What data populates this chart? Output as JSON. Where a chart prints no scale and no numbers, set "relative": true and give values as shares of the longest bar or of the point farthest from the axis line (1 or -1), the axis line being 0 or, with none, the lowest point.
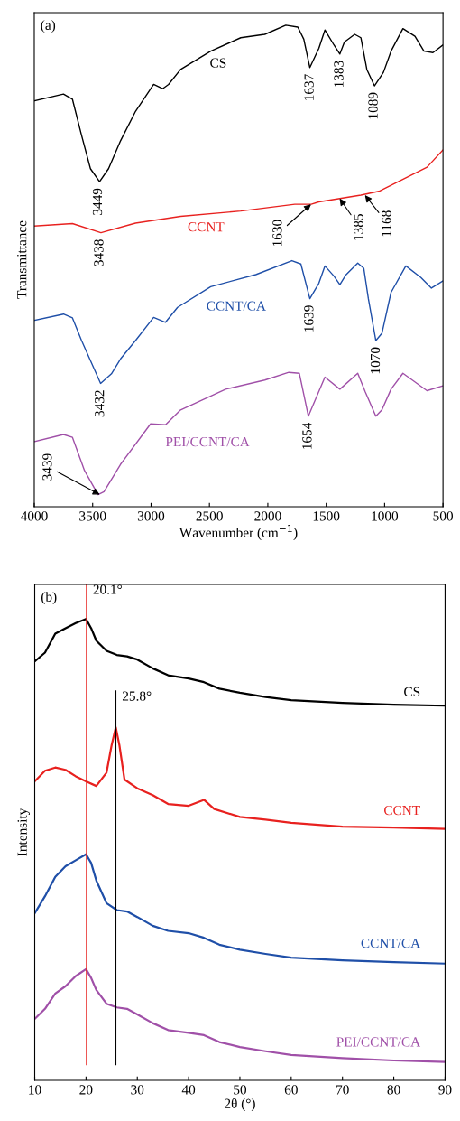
{
  "chart_data": [
    {
      "type": "line",
      "title": "(a)",
      "xlabel": "Wavenumber (cm$^{−1}$)",
      "ylabel": "Transmittance",
      "relative": true,
      "xlim": [
        4000,
        500
      ],
      "xticks": [
        4000,
        3500,
        3000,
        2500,
        2000,
        1500,
        1000,
        500
      ],
      "series": [
        {
          "name": "CS",
          "color": "#000000",
          "x": [
            4000,
            3750,
            3673,
            3595,
            3519,
            3441,
            3364,
            3261,
            3133,
            2978,
            2901,
            2850,
            2747,
            2489,
            2232,
            2026,
            1846,
            1743,
            1692,
            1640,
            1563,
            1511,
            1434,
            1383,
            1344,
            1256,
            1203,
            1152,
            1087,
            1010,
            945,
            843,
            740,
            663,
            586,
            500
          ],
          "values": [
            0.843,
            0.857,
            0.846,
            0.771,
            0.702,
            0.675,
            0.702,
            0.76,
            0.821,
            0.877,
            0.868,
            0.877,
            0.908,
            0.946,
            0.974,
            0.981,
            1.0,
            0.996,
            0.971,
            0.912,
            0.952,
            0.99,
            0.959,
            0.94,
            0.965,
            0.981,
            0.974,
            0.908,
            0.874,
            0.902,
            0.946,
            0.993,
            0.977,
            0.946,
            0.943,
            0.959
          ]
        },
        {
          "name": "CCNT",
          "color": "#e8211f",
          "x": [
            4000,
            3673,
            3429,
            3133,
            2747,
            2232,
            1769,
            1628,
            1563,
            1203,
            1049,
            818,
            637,
            500
          ],
          "values": [
            0.583,
            0.588,
            0.569,
            0.589,
            0.603,
            0.614,
            0.628,
            0.628,
            0.633,
            0.647,
            0.655,
            0.683,
            0.705,
            0.741
          ]
        },
        {
          "name": "CCNT/CA",
          "color": "#1f4fa8",
          "x": [
            4000,
            3750,
            3673,
            3595,
            3432,
            3339,
            3261,
            3133,
            2978,
            2876,
            2773,
            2489,
            2103,
            1794,
            1717,
            1640,
            1563,
            1511,
            1434,
            1383,
            1333,
            1230,
            1178,
            1139,
            1075,
            1023,
            945,
            818,
            689,
            599,
            500
          ],
          "values": [
            0.387,
            0.4,
            0.392,
            0.345,
            0.256,
            0.276,
            0.307,
            0.345,
            0.393,
            0.383,
            0.414,
            0.457,
            0.482,
            0.511,
            0.504,
            0.432,
            0.464,
            0.5,
            0.479,
            0.461,
            0.481,
            0.506,
            0.495,
            0.432,
            0.345,
            0.36,
            0.445,
            0.5,
            0.476,
            0.454,
            0.469
          ]
        },
        {
          "name": "PEI/CCNT/CA",
          "color": "#a050a8",
          "x": [
            4000,
            3750,
            3673,
            3570,
            3454,
            3403,
            3261,
            3004,
            2876,
            2747,
            2361,
            2026,
            1820,
            1730,
            1653,
            1511,
            1383,
            1230,
            1165,
            1075,
            1023,
            945,
            843,
            637,
            500
          ],
          "values": [
            0.135,
            0.15,
            0.144,
            0.075,
            0.025,
            0.031,
            0.088,
            0.172,
            0.17,
            0.201,
            0.244,
            0.263,
            0.279,
            0.277,
            0.188,
            0.269,
            0.244,
            0.277,
            0.238,
            0.188,
            0.201,
            0.244,
            0.277,
            0.241,
            0.251
          ]
        }
      ],
      "annotations": [
        {
          "text": "3449",
          "x": 3449,
          "y": 0.675
        },
        {
          "text": "1637",
          "x": 1637,
          "y": 0.912
        },
        {
          "text": "1383",
          "x": 1383,
          "y": 0.94
        },
        {
          "text": "1089",
          "x": 1089,
          "y": 0.874
        },
        {
          "text": "3438",
          "x": 3438,
          "y": 0.569
        },
        {
          "text": "1630",
          "x": 1630,
          "y": 0.628
        },
        {
          "text": "1385",
          "x": 1385,
          "y": 0.64
        },
        {
          "text": "1168",
          "x": 1168,
          "y": 0.647
        },
        {
          "text": "3432",
          "x": 3432,
          "y": 0.256
        },
        {
          "text": "1639",
          "x": 1639,
          "y": 0.432
        },
        {
          "text": "1070",
          "x": 1070,
          "y": 0.345
        },
        {
          "text": "1654",
          "x": 1654,
          "y": 0.188
        },
        {
          "text": "3439",
          "x": 3439,
          "y": 0.025
        }
      ]
    },
    {
      "type": "line",
      "title": "(b)",
      "xlabel": "2θ (°)",
      "ylabel": "Intensity",
      "relative": true,
      "xlim": [
        10,
        90
      ],
      "xticks": [
        10,
        20,
        30,
        40,
        50,
        60,
        70,
        80,
        90
      ],
      "series": [
        {
          "name": "CS",
          "color": "#000000",
          "x": [
            10,
            12,
            14,
            16,
            18,
            20,
            21,
            22,
            24,
            26,
            28,
            30,
            33,
            36,
            40,
            43,
            46,
            50,
            55,
            60,
            70,
            80,
            90
          ],
          "values": [
            0.908,
            0.927,
            0.968,
            0.98,
            0.991,
            1.0,
            0.98,
            0.953,
            0.931,
            0.922,
            0.919,
            0.912,
            0.893,
            0.878,
            0.871,
            0.863,
            0.849,
            0.84,
            0.831,
            0.824,
            0.818,
            0.814,
            0.812
          ]
        },
        {
          "name": "CCNT",
          "color": "#e8211f",
          "x": [
            10,
            12,
            14,
            16,
            18,
            20,
            22,
            24,
            25,
            25.8,
            26.5,
            27.5,
            30,
            33,
            36,
            40,
            43,
            45,
            50,
            55,
            60,
            70,
            80,
            90
          ],
          "values": [
            0.648,
            0.671,
            0.678,
            0.673,
            0.659,
            0.648,
            0.638,
            0.667,
            0.727,
            0.765,
            0.727,
            0.652,
            0.633,
            0.618,
            0.599,
            0.595,
            0.608,
            0.588,
            0.571,
            0.565,
            0.558,
            0.55,
            0.548,
            0.545
          ]
        },
        {
          "name": "CCNT/CA",
          "color": "#1f4fa8",
          "x": [
            10,
            12,
            14,
            16,
            18,
            20,
            21,
            22,
            24,
            26,
            28,
            30,
            33,
            36,
            40,
            43,
            46,
            50,
            55,
            60,
            70,
            80,
            90
          ],
          "values": [
            0.362,
            0.399,
            0.441,
            0.464,
            0.477,
            0.49,
            0.471,
            0.433,
            0.384,
            0.369,
            0.366,
            0.354,
            0.335,
            0.324,
            0.319,
            0.309,
            0.294,
            0.283,
            0.274,
            0.266,
            0.26,
            0.256,
            0.253
          ]
        },
        {
          "name": "PEI/CCNT/CA",
          "color": "#a050a8",
          "x": [
            10,
            12,
            14,
            16,
            18,
            20,
            21,
            22,
            24,
            26,
            28,
            30,
            33,
            36,
            40,
            43,
            46,
            50,
            55,
            60,
            70,
            80,
            90
          ],
          "values": [
            0.133,
            0.155,
            0.188,
            0.204,
            0.226,
            0.241,
            0.222,
            0.196,
            0.166,
            0.158,
            0.155,
            0.143,
            0.124,
            0.109,
            0.103,
            0.098,
            0.083,
            0.072,
            0.063,
            0.055,
            0.048,
            0.043,
            0.04
          ]
        }
      ],
      "ref_lines": [
        {
          "axis": "x",
          "value": 20.1,
          "label": "20.1°",
          "color": "#e8211f"
        },
        {
          "axis": "x",
          "value": 25.8,
          "label": "25.8°",
          "color": "#000000"
        }
      ]
    }
  ]
}
